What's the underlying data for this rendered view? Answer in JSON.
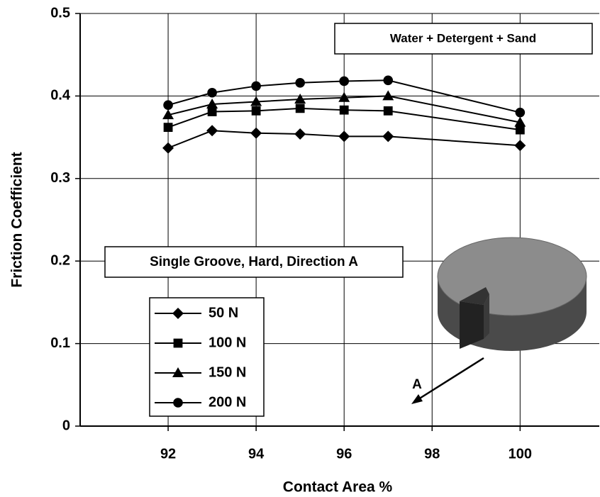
{
  "chart_data": {
    "type": "line",
    "x_label": "Contact Area %",
    "y_label": "Friction Coefficient",
    "annotations": [
      "Water + Detergent + Sand",
      "Single Groove, Hard, Direction A",
      "A"
    ],
    "xlim": [
      90,
      101.8
    ],
    "xticks": [
      92,
      94,
      96,
      98,
      100
    ],
    "ylim": [
      0,
      0.5
    ],
    "yticks": [
      0,
      0.1,
      0.2,
      0.3,
      0.4,
      0.5
    ],
    "grid": true,
    "legend": "lower left",
    "x": [
      92,
      93,
      94,
      95,
      96,
      97,
      100
    ],
    "series": [
      {
        "name": "50 N",
        "color": "#000000",
        "marker": "diamond",
        "values": [
          0.337,
          0.358,
          0.355,
          0.354,
          0.351,
          0.351,
          0.34
        ]
      },
      {
        "name": "100 N",
        "color": "#000000",
        "marker": "square",
        "values": [
          0.362,
          0.381,
          0.382,
          0.385,
          0.383,
          0.382,
          0.359
        ]
      },
      {
        "name": "150 N",
        "color": "#000000",
        "marker": "triangle",
        "values": [
          0.377,
          0.39,
          0.393,
          0.396,
          0.398,
          0.4,
          0.368
        ]
      },
      {
        "name": "200 N",
        "color": "#000000",
        "marker": "circle",
        "values": [
          0.389,
          0.404,
          0.412,
          0.416,
          0.418,
          0.419,
          0.38
        ]
      }
    ]
  }
}
